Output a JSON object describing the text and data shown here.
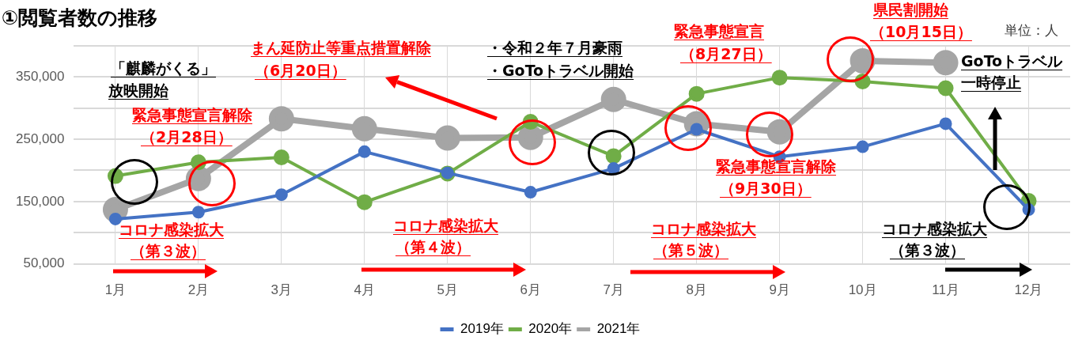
{
  "chart_data": {
    "type": "line",
    "title": "①閲覧者数の推移",
    "categories": [
      "1月",
      "2月",
      "3月",
      "4月",
      "5月",
      "6月",
      "7月",
      "8月",
      "9月",
      "10月",
      "11月",
      "12月"
    ],
    "series": [
      {
        "name": "2019年",
        "color": "#4472c4",
        "values": [
          122000,
          133000,
          161000,
          230000,
          196000,
          165000,
          203000,
          266000,
          222000,
          238000,
          275000,
          137000
        ]
      },
      {
        "name": "2020年",
        "color": "#70ad47",
        "values": [
          191000,
          213000,
          221000,
          149000,
          195000,
          278000,
          223000,
          323000,
          349000,
          343000,
          332000,
          151000
        ]
      },
      {
        "name": "2021年",
        "color": "#a5a5a5",
        "values": [
          137000,
          187000,
          283000,
          267000,
          252000,
          253000,
          314000,
          275000,
          262000,
          376000,
          373000,
          null
        ]
      }
    ],
    "ylim": [
      50000,
      400000
    ],
    "yticks": [
      {
        "value": 50000,
        "label": "50,000"
      },
      {
        "value": 100000,
        "label": null
      },
      {
        "value": 150000,
        "label": "150,000"
      },
      {
        "value": 200000,
        "label": null
      },
      {
        "value": 250000,
        "label": "250,000"
      },
      {
        "value": 300000,
        "label": null
      },
      {
        "value": 350000,
        "label": "350,000"
      },
      {
        "value": 400000,
        "label": null
      }
    ],
    "grid": true,
    "legend": "bottom",
    "marker": "circle",
    "annotations": [
      "「麒麟がくる」",
      "放映開始",
      "緊急事態宣言解除",
      "（2月28日）",
      "まん延防止等重点措置解除",
      "（6月20日）",
      "・令和２年７月豪雨",
      "・GoToトラベル開始",
      "緊急事態宣言",
      "（8月27日）",
      "県民割開始",
      "（10月15日）",
      "単位：人",
      "GoToトラベル",
      "一時停止",
      "緊急事態宣言解除",
      "（9月30日）",
      "コロナ感染拡大",
      "（第３波）",
      "コロナ感染拡大",
      "（第４波）",
      "コロナ感染拡大",
      "（第５波）",
      "コロナ感染拡大",
      "（第３波）"
    ]
  }
}
